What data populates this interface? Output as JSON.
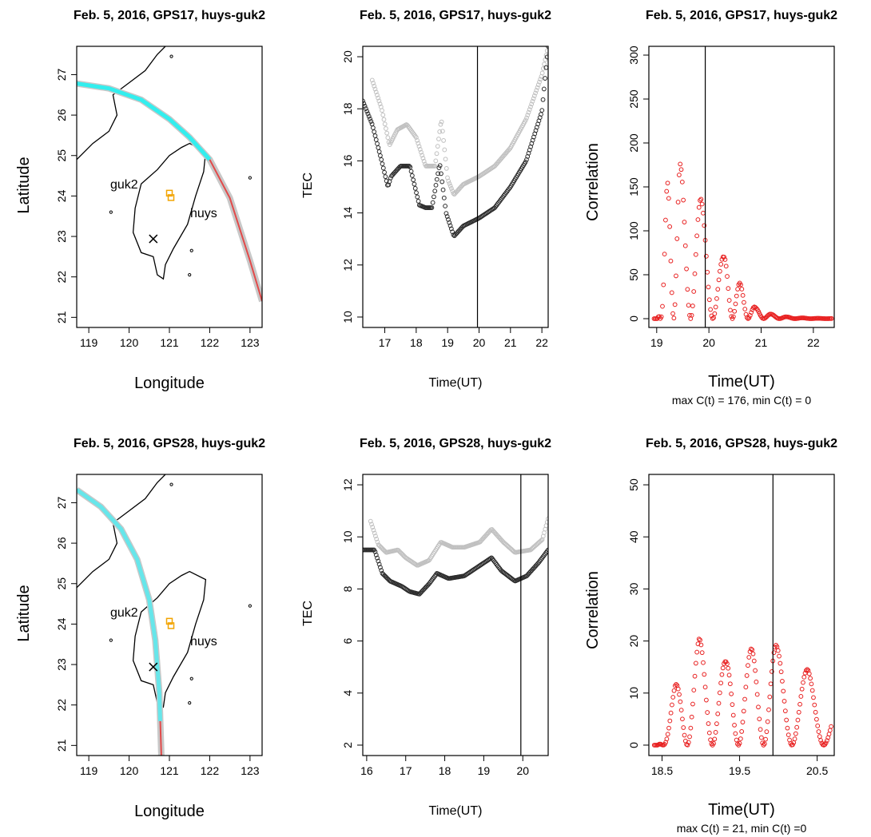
{
  "colors": {
    "coast": "#000000",
    "gps17_cyan": "#33eeee",
    "gps28_cyan": "#66e6ea",
    "track_gray": "#c8c8c8",
    "track_red": "#e24a4a",
    "station": "#f2a400",
    "tec_light": "#c0c0c0",
    "tec_dark": "#2b2b2b",
    "corr": "#e82020"
  },
  "panels": {
    "p11": {
      "title": "Feb. 5, 2016, GPS17, huys-guk2",
      "xlabel": "Longitude",
      "ylabel": "Latitude",
      "label_guk2": "guk2",
      "label_huys": "huys"
    },
    "p12": {
      "title": "Feb. 5, 2016, GPS17, huys-guk2",
      "xlabel": "Time(UT)",
      "ylabel": "TEC"
    },
    "p13": {
      "title": "Feb. 5, 2016, GPS17, huys-guk2",
      "xlabel": "Time(UT)",
      "ylabel": "Correlation",
      "note": "max C(t) = 176, min C(t) = 0"
    },
    "p21": {
      "title": "Feb. 5, 2016, GPS28, huys-guk2",
      "xlabel": "Longitude",
      "ylabel": "Latitude",
      "label_guk2": "guk2",
      "label_huys": "huys"
    },
    "p22": {
      "title": "Feb. 5, 2016, GPS28, huys-guk2",
      "xlabel": "Time(UT)",
      "ylabel": "TEC"
    },
    "p23": {
      "title": "Feb. 5, 2016, GPS28, huys-guk2",
      "xlabel": "Time(UT)",
      "ylabel": "Correlation",
      "note": "max C(t) = 21, min C(t) =0"
    }
  },
  "chart_data": [
    {
      "type": "map",
      "title": "Feb. 5, 2016, GPS17, huys-guk2",
      "xlabel": "Longitude",
      "ylabel": "Latitude",
      "xlim": [
        118.7,
        123.3
      ],
      "ylim": [
        20.75,
        27.7
      ],
      "xticks": [
        119,
        120,
        121,
        122,
        123
      ],
      "yticks": [
        21,
        22,
        23,
        24,
        25,
        26,
        27
      ],
      "stations": [
        {
          "lon": 121.0,
          "lat": 24.07
        },
        {
          "lon": 121.04,
          "lat": 23.96
        }
      ],
      "epicenter": {
        "lon": 120.6,
        "lat": 22.94
      },
      "labels": [
        {
          "text": "guk2",
          "lon": 120.15,
          "lat": 24.17
        },
        {
          "text": "huys",
          "lon": 121.45,
          "lat": 23.8
        }
      ],
      "track": [
        [
          118.7,
          26.78
        ],
        [
          119.5,
          26.66
        ],
        [
          120.3,
          26.38
        ],
        [
          121.0,
          25.9
        ],
        [
          121.5,
          25.45
        ],
        [
          122.0,
          24.9
        ],
        [
          122.5,
          23.95
        ],
        [
          123.0,
          22.4
        ],
        [
          123.3,
          21.4
        ]
      ],
      "track_split_lon": 122.0
    },
    {
      "type": "scatter",
      "title": "Feb. 5, 2016, GPS17, huys-guk2",
      "xlabel": "Time(UT)",
      "ylabel": "TEC",
      "xlim": [
        16.3,
        22.2
      ],
      "ylim": [
        9.6,
        20.4
      ],
      "xticks": [
        17,
        18,
        19,
        20,
        21,
        22
      ],
      "yticks": [
        10,
        12,
        14,
        16,
        18,
        20
      ],
      "vline": 19.95,
      "series": [
        {
          "x": [
            16.6,
            16.9,
            17.15,
            17.4,
            17.7,
            18.0,
            18.3,
            18.6,
            18.8,
            19.0,
            19.2,
            19.5,
            20.0,
            20.5,
            21.0,
            21.5,
            22.0,
            22.2
          ],
          "y": [
            19.1,
            18.0,
            16.6,
            17.2,
            17.4,
            16.9,
            15.8,
            15.8,
            17.6,
            15.3,
            14.7,
            15.1,
            15.4,
            15.8,
            16.5,
            17.6,
            19.3,
            20.4
          ]
        },
        {
          "x": [
            16.3,
            16.6,
            16.9,
            17.1,
            17.2,
            17.5,
            17.8,
            18.1,
            18.3,
            18.5,
            18.75,
            18.95,
            19.2,
            19.5,
            20.0,
            20.5,
            21.0,
            21.5,
            22.0,
            22.2
          ],
          "y": [
            18.3,
            17.4,
            16.0,
            15.0,
            15.4,
            15.8,
            15.8,
            14.3,
            14.2,
            14.2,
            15.9,
            14.0,
            13.1,
            13.5,
            13.8,
            14.2,
            15.0,
            16.0,
            17.9,
            20.4
          ]
        }
      ]
    },
    {
      "type": "scatter",
      "title": "Feb. 5, 2016, GPS17, huys-guk2",
      "xlabel": "Time(UT)",
      "ylabel": "Correlation",
      "xlim": [
        18.85,
        22.4
      ],
      "ylim": [
        -10,
        310
      ],
      "xticks": [
        19.0,
        20.0,
        21.0,
        22.0
      ],
      "yticks": [
        0,
        50,
        100,
        150,
        200,
        250,
        300
      ],
      "vline": 19.93,
      "peaks": [
        [
          19.2,
          156
        ],
        [
          19.45,
          176
        ],
        [
          19.85,
          136
        ],
        [
          20.3,
          69
        ],
        [
          20.6,
          40
        ],
        [
          20.9,
          12
        ],
        [
          21.2,
          5
        ],
        [
          21.5,
          2
        ]
      ],
      "series": [
        {
          "x_start": 18.95,
          "x_end": 22.35
        }
      ]
    },
    {
      "type": "map",
      "title": "Feb. 5, 2016, GPS28, huys-guk2",
      "xlabel": "Longitude",
      "ylabel": "Latitude",
      "xlim": [
        118.7,
        123.3
      ],
      "ylim": [
        20.75,
        27.7
      ],
      "xticks": [
        119,
        120,
        121,
        122,
        123
      ],
      "yticks": [
        21,
        22,
        23,
        24,
        25,
        26,
        27
      ],
      "stations": [
        {
          "lon": 121.0,
          "lat": 24.07
        },
        {
          "lon": 121.04,
          "lat": 23.96
        }
      ],
      "epicenter": {
        "lon": 120.6,
        "lat": 22.94
      },
      "labels": [
        {
          "text": "guk2",
          "lon": 120.15,
          "lat": 24.17
        },
        {
          "text": "huys",
          "lon": 121.45,
          "lat": 23.8
        }
      ],
      "track": [
        [
          118.7,
          27.32
        ],
        [
          119.3,
          26.9
        ],
        [
          119.8,
          26.35
        ],
        [
          120.2,
          25.6
        ],
        [
          120.5,
          24.6
        ],
        [
          120.65,
          23.6
        ],
        [
          120.75,
          22.3
        ],
        [
          120.8,
          20.75
        ]
      ],
      "track_split_lat": 21.6
    },
    {
      "type": "scatter",
      "title": "Feb. 5, 2016, GPS28, huys-guk2",
      "xlabel": "Time(UT)",
      "ylabel": "TEC",
      "xlim": [
        15.9,
        20.65
      ],
      "ylim": [
        1.6,
        12.4
      ],
      "xticks": [
        16,
        17,
        18,
        19,
        20
      ],
      "yticks": [
        2,
        4,
        6,
        8,
        10,
        12
      ],
      "vline": 19.95,
      "series": [
        {
          "x": [
            16.1,
            16.3,
            16.5,
            16.8,
            17.0,
            17.3,
            17.6,
            17.9,
            18.2,
            18.5,
            18.9,
            19.2,
            19.5,
            19.8,
            20.2,
            20.5,
            20.65
          ],
          "y": [
            10.6,
            9.7,
            9.4,
            9.5,
            9.2,
            8.9,
            9.1,
            9.8,
            9.6,
            9.6,
            9.8,
            10.3,
            9.8,
            9.4,
            9.5,
            9.9,
            10.7
          ]
        },
        {
          "x": [
            15.9,
            16.2,
            16.4,
            16.6,
            16.9,
            17.1,
            17.35,
            17.6,
            17.8,
            18.1,
            18.5,
            18.9,
            19.2,
            19.45,
            19.8,
            20.1,
            20.4,
            20.65
          ],
          "y": [
            9.5,
            9.5,
            8.6,
            8.3,
            8.1,
            7.9,
            7.8,
            8.2,
            8.6,
            8.4,
            8.5,
            8.9,
            9.2,
            8.7,
            8.3,
            8.5,
            9.0,
            9.5
          ]
        }
      ]
    },
    {
      "type": "scatter",
      "title": "Feb. 5, 2016, GPS28, huys-guk2",
      "xlabel": "Time(UT)",
      "ylabel": "Correlation",
      "xlim": [
        18.33,
        20.72
      ],
      "ylim": [
        -2,
        52
      ],
      "xticks": [
        18.5,
        19.5,
        20.5
      ],
      "xtick_labels": [
        "18.5",
        "19.5",
        "20.5"
      ],
      "yticks": [
        0,
        10,
        20,
        30,
        40,
        50
      ],
      "vline": 19.93,
      "peaks": [
        [
          18.67,
          11.5
        ],
        [
          18.98,
          20.5
        ],
        [
          19.32,
          16
        ],
        [
          19.65,
          18.5
        ],
        [
          19.97,
          19.2
        ],
        [
          20.38,
          14.5
        ]
      ],
      "series": [
        {
          "x_start": 18.4,
          "x_end": 20.68
        }
      ]
    }
  ]
}
